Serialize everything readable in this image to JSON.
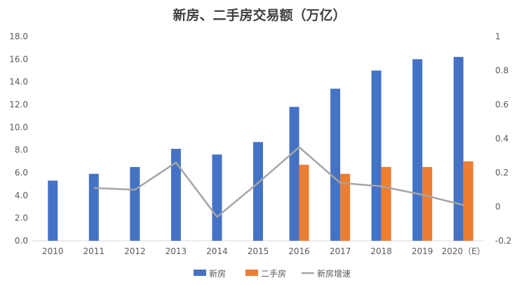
{
  "chart_data": {
    "type": "bar",
    "title": "新房、二手房交易额（万亿）",
    "categories": [
      "2010",
      "2011",
      "2012",
      "2013",
      "2014",
      "2015",
      "2016",
      "2017",
      "2018",
      "2019",
      "2020（E）"
    ],
    "y_left": {
      "min": 0,
      "max": 18,
      "step": 2,
      "ticks": [
        "0.0",
        "2.0",
        "4.0",
        "6.0",
        "8.0",
        "10.0",
        "12.0",
        "14.0",
        "16.0",
        "18.0"
      ]
    },
    "y_right": {
      "min": -0.2,
      "max": 1,
      "step": 0.2,
      "ticks": [
        "-0.2",
        "0",
        "0.2",
        "0.4",
        "0.6",
        "0.8",
        "1"
      ]
    },
    "series": [
      {
        "name": "新房",
        "kind": "bar",
        "axis": "left",
        "color": "#4472C4",
        "values": [
          5.3,
          5.9,
          6.5,
          8.1,
          7.6,
          8.7,
          11.8,
          13.4,
          15.0,
          16.0,
          16.2
        ]
      },
      {
        "name": "二手房",
        "kind": "bar",
        "axis": "left",
        "color": "#ED7D31",
        "values": [
          null,
          null,
          null,
          null,
          null,
          null,
          6.7,
          5.9,
          6.5,
          6.5,
          7.0
        ]
      },
      {
        "name": "新房增速",
        "kind": "line",
        "axis": "right",
        "color": "#A5A5A5",
        "values": [
          null,
          0.11,
          0.1,
          0.26,
          -0.06,
          0.14,
          0.35,
          0.14,
          0.12,
          0.07,
          0.01
        ]
      }
    ],
    "legend_position": "bottom",
    "grid": false
  }
}
